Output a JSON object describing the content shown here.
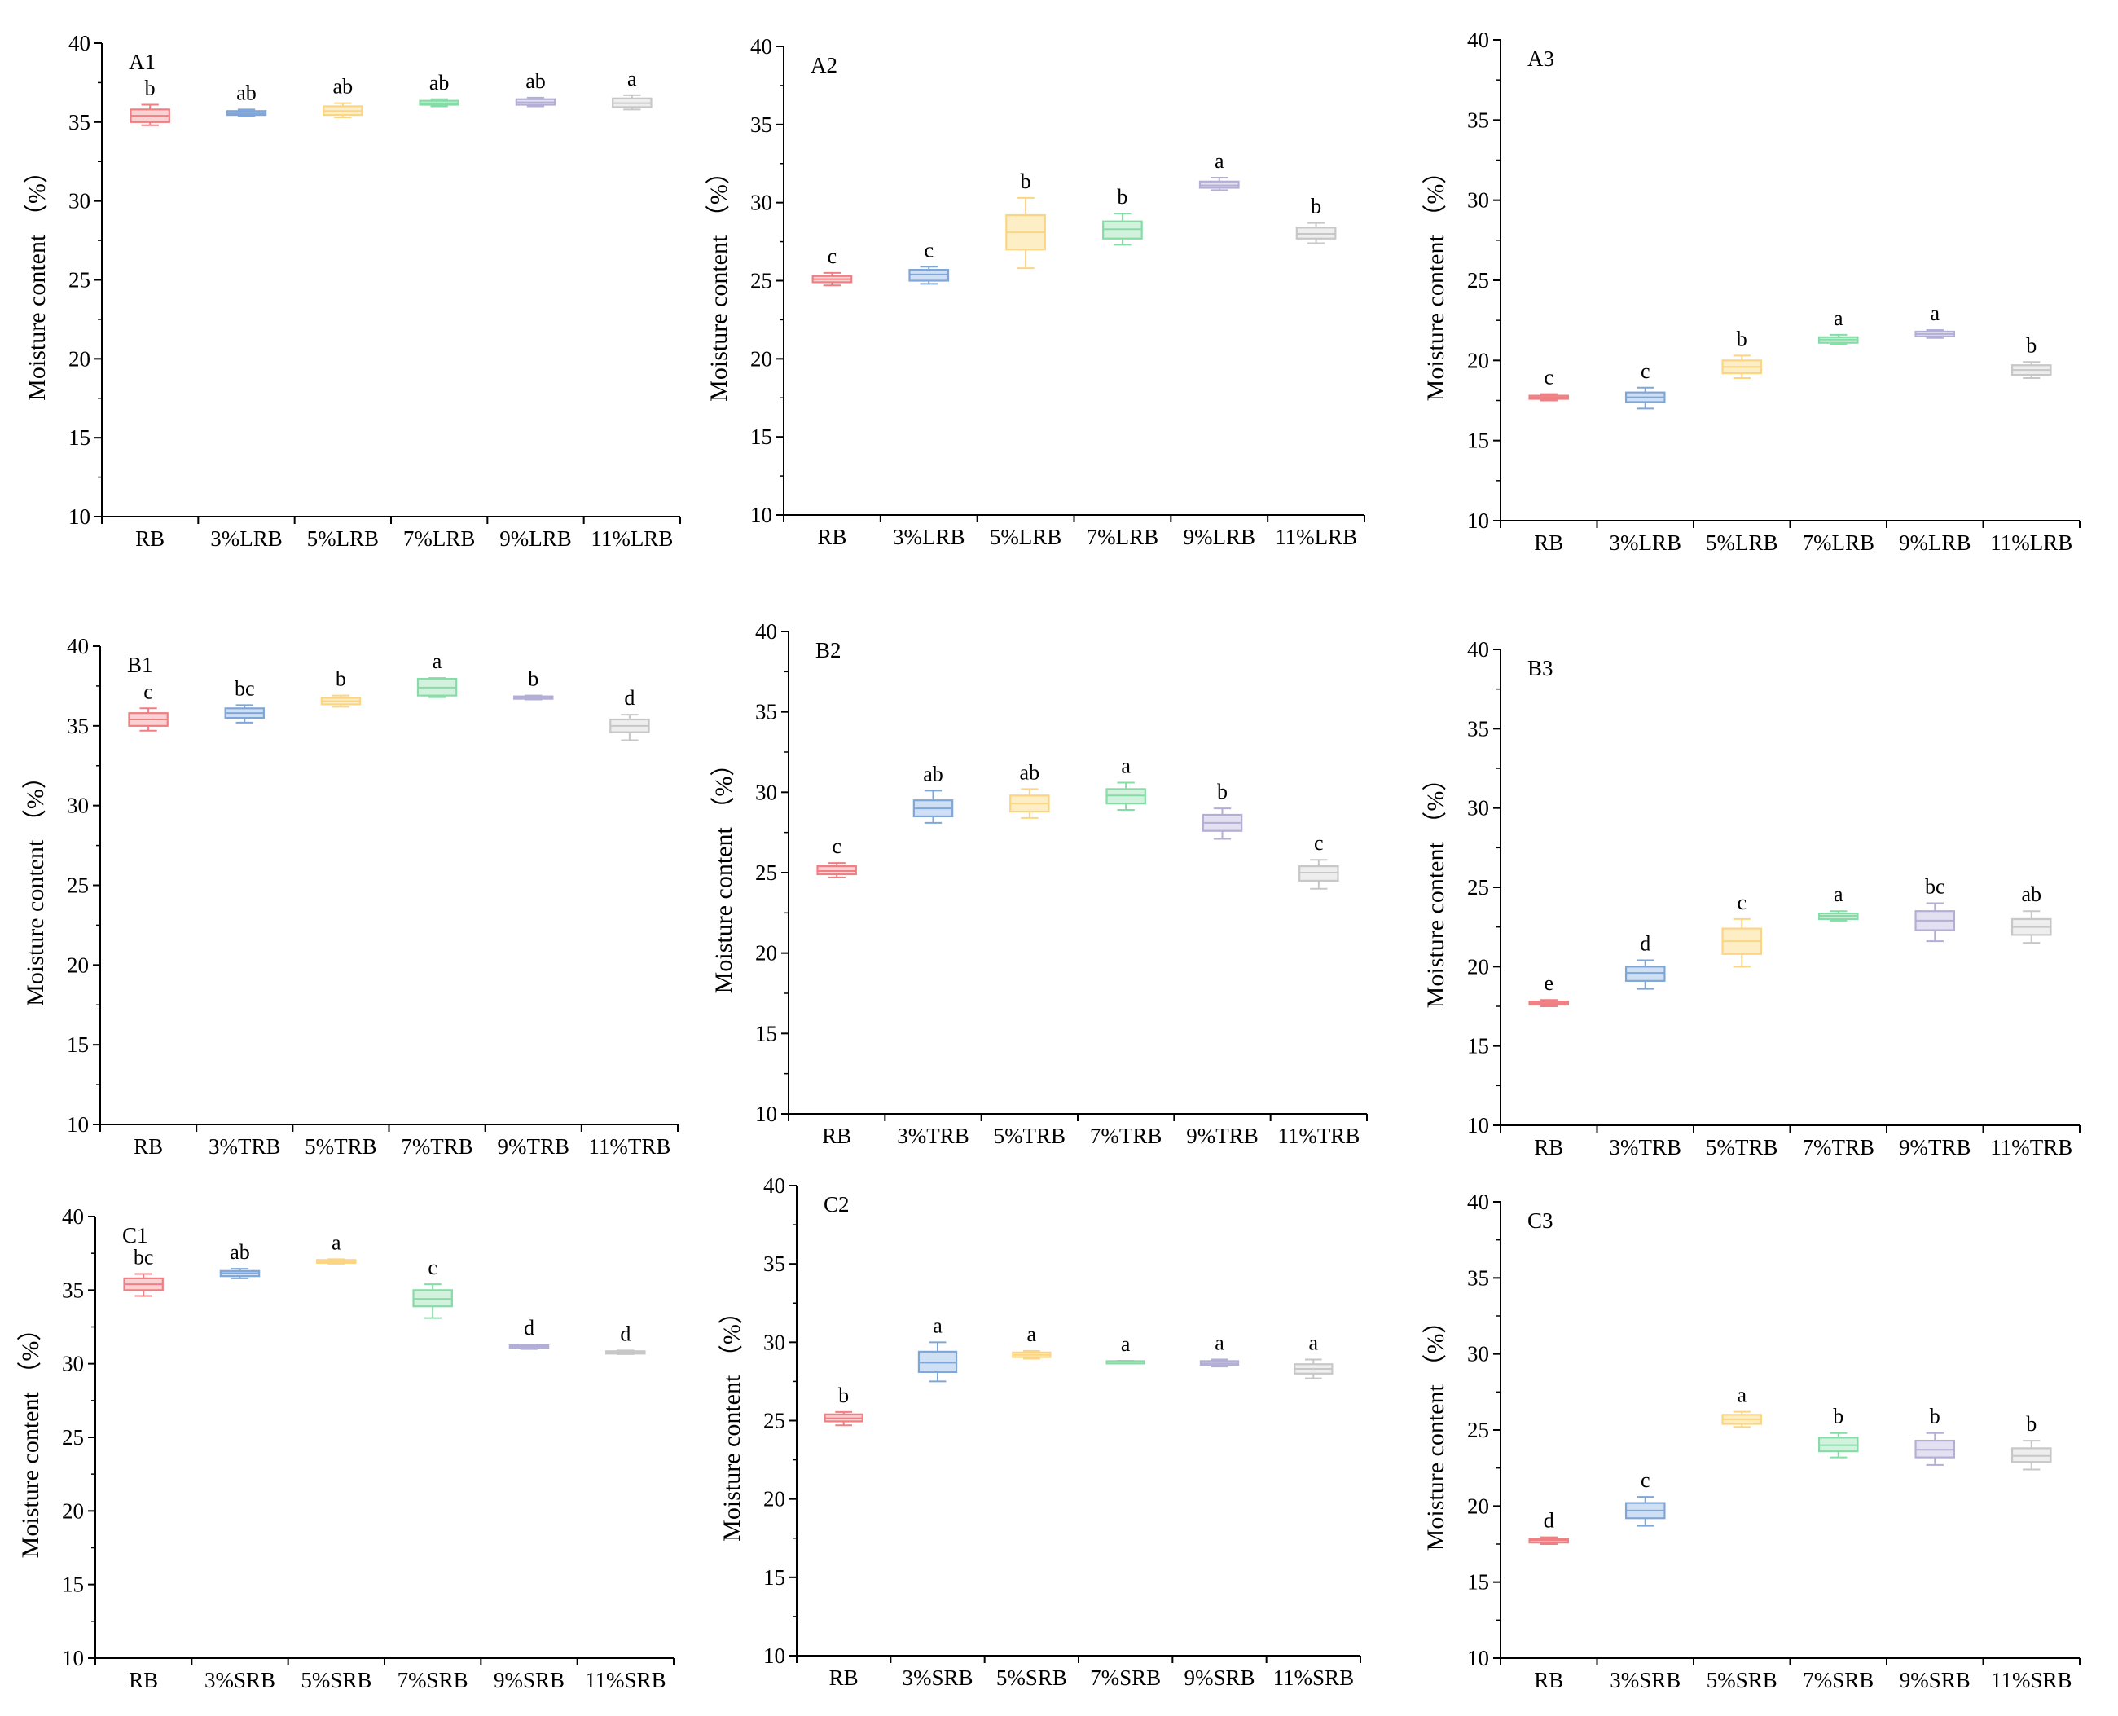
{
  "colors": {
    "palette": [
      "#f07f83",
      "#7fa6d8",
      "#fbd584",
      "#86dca6",
      "#b3aed6",
      "#c7c7c7"
    ],
    "fills": [
      "#fbd2d4",
      "#cfe0f4",
      "#fdeec6",
      "#d2f2de",
      "#e3e0f1",
      "#eeeeee"
    ]
  },
  "chart_data": [
    {
      "type": "box",
      "panel": "A1",
      "ylabel": "Moisture content （%）",
      "ylim": [
        10,
        40
      ],
      "yticks": [
        10,
        15,
        20,
        25,
        30,
        35,
        40
      ],
      "categories": [
        "RB",
        "3%LRB",
        "5%LRB",
        "7%LRB",
        "9%LRB",
        "11%LRB"
      ],
      "boxes": [
        {
          "min": 34.8,
          "q1": 35.0,
          "median": 35.4,
          "q3": 35.8,
          "max": 36.1,
          "sig": "b"
        },
        {
          "min": 35.4,
          "q1": 35.45,
          "median": 35.55,
          "q3": 35.7,
          "max": 35.8,
          "sig": "ab"
        },
        {
          "min": 35.3,
          "q1": 35.45,
          "median": 35.7,
          "q3": 36.0,
          "max": 36.2,
          "sig": "ab"
        },
        {
          "min": 36.0,
          "q1": 36.1,
          "median": 36.2,
          "q3": 36.35,
          "max": 36.45,
          "sig": "ab"
        },
        {
          "min": 36.0,
          "q1": 36.1,
          "median": 36.25,
          "q3": 36.45,
          "max": 36.55,
          "sig": "ab"
        },
        {
          "min": 35.8,
          "q1": 35.95,
          "median": 36.2,
          "q3": 36.5,
          "max": 36.7,
          "sig": "a"
        }
      ]
    },
    {
      "type": "box",
      "panel": "A2",
      "ylabel": "Moisture content （%）",
      "ylim": [
        10,
        40
      ],
      "yticks": [
        10,
        15,
        20,
        25,
        30,
        35,
        40
      ],
      "categories": [
        "RB",
        "3%LRB",
        "5%LRB",
        "7%LRB",
        "9%LRB",
        "11%LRB"
      ],
      "boxes": [
        {
          "min": 24.7,
          "q1": 24.9,
          "median": 25.1,
          "q3": 25.3,
          "max": 25.5,
          "sig": "c"
        },
        {
          "min": 24.8,
          "q1": 25.0,
          "median": 25.4,
          "q3": 25.7,
          "max": 25.9,
          "sig": "c"
        },
        {
          "min": 25.8,
          "q1": 27.0,
          "median": 28.1,
          "q3": 29.2,
          "max": 30.3,
          "sig": "b"
        },
        {
          "min": 27.3,
          "q1": 27.7,
          "median": 28.3,
          "q3": 28.8,
          "max": 29.3,
          "sig": "b"
        },
        {
          "min": 30.8,
          "q1": 30.95,
          "median": 31.1,
          "q3": 31.35,
          "max": 31.6,
          "sig": "a"
        },
        {
          "min": 27.4,
          "q1": 27.7,
          "median": 28.0,
          "q3": 28.4,
          "max": 28.7,
          "sig": "b"
        }
      ]
    },
    {
      "type": "box",
      "panel": "A3",
      "ylabel": "Moisture content （%）",
      "ylim": [
        10,
        40
      ],
      "yticks": [
        10,
        15,
        20,
        25,
        30,
        35,
        40
      ],
      "categories": [
        "RB",
        "3%LRB",
        "5%LRB",
        "7%LRB",
        "9%LRB",
        "11%LRB"
      ],
      "boxes": [
        {
          "min": 17.5,
          "q1": 17.6,
          "median": 17.7,
          "q3": 17.8,
          "max": 17.9,
          "sig": "c"
        },
        {
          "min": 17.0,
          "q1": 17.4,
          "median": 17.7,
          "q3": 18.0,
          "max": 18.3,
          "sig": "c"
        },
        {
          "min": 18.9,
          "q1": 19.2,
          "median": 19.6,
          "q3": 20.0,
          "max": 20.3,
          "sig": "b"
        },
        {
          "min": 21.0,
          "q1": 21.1,
          "median": 21.3,
          "q3": 21.45,
          "max": 21.6,
          "sig": "a"
        },
        {
          "min": 21.4,
          "q1": 21.5,
          "median": 21.65,
          "q3": 21.8,
          "max": 21.9,
          "sig": "a"
        },
        {
          "min": 18.9,
          "q1": 19.1,
          "median": 19.4,
          "q3": 19.7,
          "max": 19.9,
          "sig": "b"
        }
      ]
    },
    {
      "type": "box",
      "panel": "B1",
      "ylabel": "Moisture content （%）",
      "ylim": [
        10,
        40
      ],
      "yticks": [
        10,
        15,
        20,
        25,
        30,
        35,
        40
      ],
      "categories": [
        "RB",
        "3%TRB",
        "5%TRB",
        "7%TRB",
        "9%TRB",
        "11%TRB"
      ],
      "boxes": [
        {
          "min": 34.7,
          "q1": 35.0,
          "median": 35.4,
          "q3": 35.8,
          "max": 36.1,
          "sig": "c"
        },
        {
          "min": 35.2,
          "q1": 35.5,
          "median": 35.8,
          "q3": 36.1,
          "max": 36.3,
          "sig": "bc"
        },
        {
          "min": 36.2,
          "q1": 36.35,
          "median": 36.55,
          "q3": 36.75,
          "max": 36.9,
          "sig": "b"
        },
        {
          "min": 36.8,
          "q1": 36.9,
          "median": 37.4,
          "q3": 37.95,
          "max": 38.0,
          "sig": "a"
        },
        {
          "min": 36.65,
          "q1": 36.7,
          "median": 36.8,
          "q3": 36.85,
          "max": 36.9,
          "sig": "b"
        },
        {
          "min": 34.1,
          "q1": 34.6,
          "median": 35.0,
          "q3": 35.4,
          "max": 35.7,
          "sig": "d"
        }
      ]
    },
    {
      "type": "box",
      "panel": "B2",
      "ylabel": "Moisture content （%）",
      "ylim": [
        10,
        40
      ],
      "yticks": [
        10,
        15,
        20,
        25,
        30,
        35,
        40
      ],
      "categories": [
        "RB",
        "3%TRB",
        "5%TRB",
        "7%TRB",
        "9%TRB",
        "11%TRB"
      ],
      "boxes": [
        {
          "min": 24.7,
          "q1": 24.9,
          "median": 25.1,
          "q3": 25.4,
          "max": 25.6,
          "sig": "c"
        },
        {
          "min": 28.1,
          "q1": 28.5,
          "median": 29.0,
          "q3": 29.5,
          "max": 30.1,
          "sig": "ab"
        },
        {
          "min": 28.4,
          "q1": 28.8,
          "median": 29.3,
          "q3": 29.8,
          "max": 30.2,
          "sig": "ab"
        },
        {
          "min": 28.9,
          "q1": 29.3,
          "median": 29.8,
          "q3": 30.2,
          "max": 30.6,
          "sig": "a"
        },
        {
          "min": 27.1,
          "q1": 27.6,
          "median": 28.1,
          "q3": 28.6,
          "max": 29.0,
          "sig": "b"
        },
        {
          "min": 24.0,
          "q1": 24.5,
          "median": 25.0,
          "q3": 25.4,
          "max": 25.8,
          "sig": "c"
        }
      ]
    },
    {
      "type": "box",
      "panel": "B3",
      "ylabel": "Moisture content （%）",
      "ylim": [
        10,
        40
      ],
      "yticks": [
        10,
        15,
        20,
        25,
        30,
        35,
        40
      ],
      "categories": [
        "RB",
        "3%TRB",
        "5%TRB",
        "7%TRB",
        "9%TRB",
        "11%TRB"
      ],
      "boxes": [
        {
          "min": 17.5,
          "q1": 17.6,
          "median": 17.7,
          "q3": 17.8,
          "max": 17.9,
          "sig": "e"
        },
        {
          "min": 18.6,
          "q1": 19.1,
          "median": 19.6,
          "q3": 20.0,
          "max": 20.4,
          "sig": "d"
        },
        {
          "min": 20.0,
          "q1": 20.8,
          "median": 21.6,
          "q3": 22.4,
          "max": 23.0,
          "sig": "c"
        },
        {
          "min": 22.9,
          "q1": 23.0,
          "median": 23.2,
          "q3": 23.35,
          "max": 23.5,
          "sig": "a"
        },
        {
          "min": 21.6,
          "q1": 22.3,
          "median": 22.9,
          "q3": 23.5,
          "max": 24.0,
          "sig": "bc"
        },
        {
          "min": 21.5,
          "q1": 22.0,
          "median": 22.5,
          "q3": 23.0,
          "max": 23.5,
          "sig": "ab"
        }
      ]
    },
    {
      "type": "box",
      "panel": "C1",
      "ylabel": "Moisture content （%）",
      "ylim": [
        10,
        40
      ],
      "yticks": [
        10,
        15,
        20,
        25,
        30,
        35,
        40
      ],
      "categories": [
        "RB",
        "3%SRB",
        "5%SRB",
        "7%SRB",
        "9%SRB",
        "11%SRB"
      ],
      "boxes": [
        {
          "min": 34.6,
          "q1": 35.0,
          "median": 35.4,
          "q3": 35.8,
          "max": 36.1,
          "sig": "bc"
        },
        {
          "min": 35.8,
          "q1": 35.95,
          "median": 36.15,
          "q3": 36.3,
          "max": 36.45,
          "sig": "ab"
        },
        {
          "min": 36.8,
          "q1": 36.85,
          "median": 36.95,
          "q3": 37.05,
          "max": 37.1,
          "sig": "a"
        },
        {
          "min": 33.1,
          "q1": 33.9,
          "median": 34.4,
          "q3": 35.0,
          "max": 35.4,
          "sig": "c"
        },
        {
          "min": 31.0,
          "q1": 31.05,
          "median": 31.15,
          "q3": 31.25,
          "max": 31.3,
          "sig": "d"
        },
        {
          "min": 30.65,
          "q1": 30.7,
          "median": 30.8,
          "q3": 30.85,
          "max": 30.9,
          "sig": "d"
        }
      ]
    },
    {
      "type": "box",
      "panel": "C2",
      "ylabel": "Moisture content （%）",
      "ylim": [
        10,
        40
      ],
      "yticks": [
        10,
        15,
        20,
        25,
        30,
        35,
        40
      ],
      "categories": [
        "RB",
        "3%SRB",
        "5%SRB",
        "7%SRB",
        "9%SRB",
        "11%SRB"
      ],
      "boxes": [
        {
          "min": 24.7,
          "q1": 24.95,
          "median": 25.15,
          "q3": 25.4,
          "max": 25.55,
          "sig": "b"
        },
        {
          "min": 27.5,
          "q1": 28.1,
          "median": 28.7,
          "q3": 29.4,
          "max": 30.0,
          "sig": "a"
        },
        {
          "min": 28.95,
          "q1": 29.05,
          "median": 29.2,
          "q3": 29.35,
          "max": 29.45,
          "sig": "a"
        },
        {
          "min": 28.7,
          "q1": 28.72,
          "median": 28.76,
          "q3": 28.8,
          "max": 28.82,
          "sig": "a"
        },
        {
          "min": 28.45,
          "q1": 28.55,
          "median": 28.65,
          "q3": 28.8,
          "max": 28.9,
          "sig": "a"
        },
        {
          "min": 27.7,
          "q1": 28.0,
          "median": 28.3,
          "q3": 28.6,
          "max": 28.9,
          "sig": "a"
        }
      ]
    },
    {
      "type": "box",
      "panel": "C3",
      "ylabel": "Moisture content （%）",
      "ylim": [
        10,
        40
      ],
      "yticks": [
        10,
        15,
        20,
        25,
        30,
        35,
        40
      ],
      "categories": [
        "RB",
        "3%SRB",
        "5%SRB",
        "7%SRB",
        "9%SRB",
        "11%SRB"
      ],
      "boxes": [
        {
          "min": 17.5,
          "q1": 17.6,
          "median": 17.75,
          "q3": 17.85,
          "max": 17.95,
          "sig": "d"
        },
        {
          "min": 18.7,
          "q1": 19.2,
          "median": 19.7,
          "q3": 20.2,
          "max": 20.6,
          "sig": "c"
        },
        {
          "min": 25.2,
          "q1": 25.4,
          "median": 25.7,
          "q3": 26.0,
          "max": 26.2,
          "sig": "a"
        },
        {
          "min": 23.2,
          "q1": 23.6,
          "median": 24.0,
          "q3": 24.5,
          "max": 24.8,
          "sig": "b"
        },
        {
          "min": 22.7,
          "q1": 23.2,
          "median": 23.7,
          "q3": 24.3,
          "max": 24.8,
          "sig": "b"
        },
        {
          "min": 22.4,
          "q1": 22.9,
          "median": 23.3,
          "q3": 23.8,
          "max": 24.3,
          "sig": "b"
        }
      ]
    }
  ]
}
